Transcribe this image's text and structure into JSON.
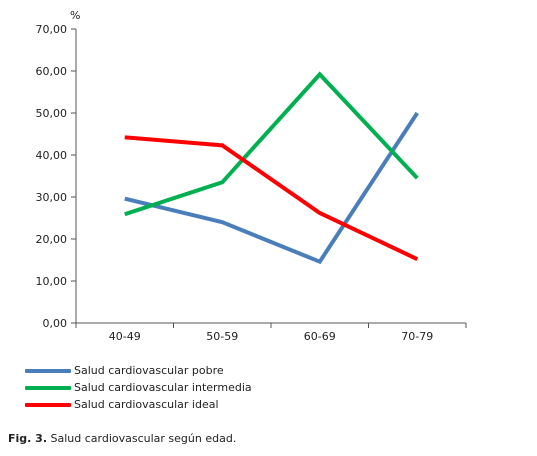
{
  "chart_data": {
    "type": "line",
    "title": "",
    "xlabel": "",
    "ylabel": "%",
    "ylim": [
      0,
      70
    ],
    "y_ticks": [
      "0,00",
      "10,00",
      "20,00",
      "30,00",
      "40,00",
      "50,00",
      "60,00",
      "70,00"
    ],
    "categories": [
      "40-49",
      "50-59",
      "60-69",
      "70-79"
    ],
    "series": [
      {
        "name": "Salud cardiovascular pobre",
        "color": "#4a7ebb",
        "values": [
          29.6,
          24.0,
          14.6,
          50.0
        ]
      },
      {
        "name": "Salud cardiovascular intermedia",
        "color": "#00b050",
        "values": [
          25.9,
          33.5,
          59.2,
          34.5
        ]
      },
      {
        "name": "Salud cardiovascular ideal",
        "color": "#ff0000",
        "values": [
          44.2,
          42.3,
          26.2,
          15.2
        ]
      }
    ],
    "legend_position": "bottom-left",
    "grid": false
  },
  "caption": {
    "prefix": "Fig.  3.",
    "text": "Salud  cardiovascular según edad."
  }
}
